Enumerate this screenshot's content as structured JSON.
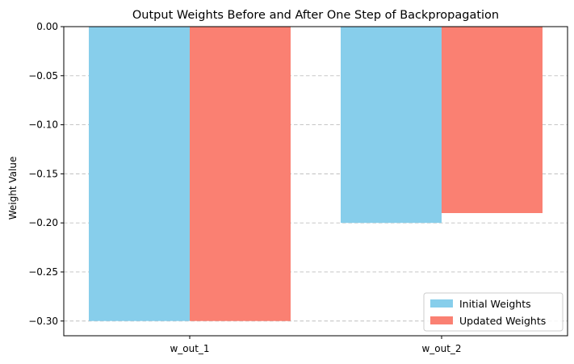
{
  "chart_data": {
    "type": "bar",
    "title": "Output Weights Before and After One Step of Backpropagation",
    "xlabel": "",
    "ylabel": "Weight Value",
    "categories": [
      "w_out_1",
      "w_out_2"
    ],
    "series": [
      {
        "name": "Initial Weights",
        "values": [
          -0.3,
          -0.2
        ],
        "color": "#87CEEB"
      },
      {
        "name": "Updated Weights",
        "values": [
          -0.3,
          -0.19
        ],
        "color": "#FA8072"
      }
    ],
    "ylim": [
      -0.315,
      0.0
    ],
    "yticks": [
      0.0,
      -0.05,
      -0.1,
      -0.15,
      -0.2,
      -0.25,
      -0.3
    ],
    "ytick_labels": [
      "0.00",
      "−0.05",
      "−0.10",
      "−0.15",
      "−0.20",
      "−0.25",
      "−0.30"
    ],
    "grid": "y-dashed",
    "legend_position": "lower-right"
  }
}
